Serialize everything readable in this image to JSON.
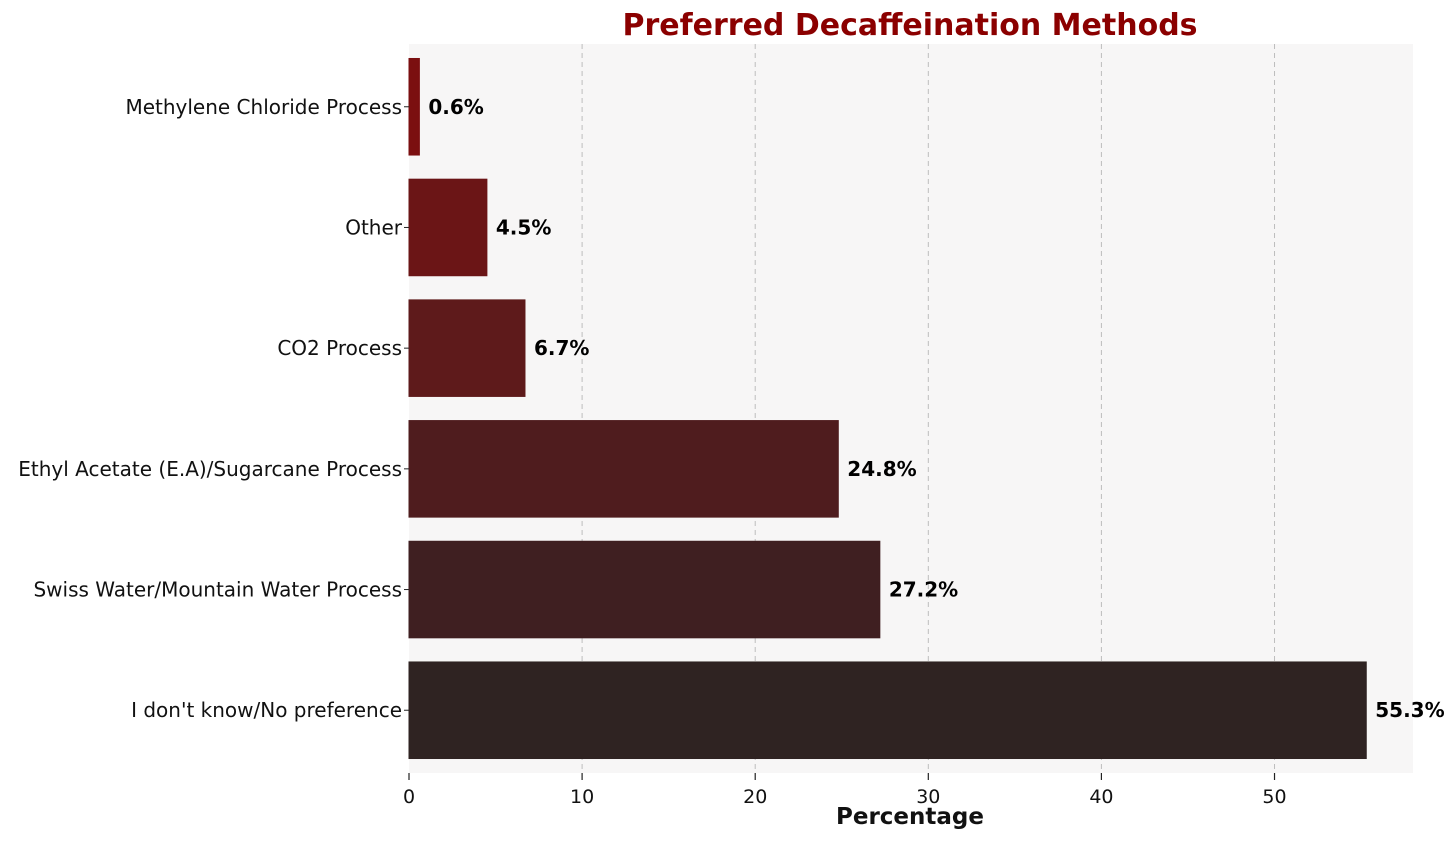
{
  "chart_data": {
    "type": "bar",
    "orientation": "horizontal",
    "title": "Preferred Decaffeination Methods",
    "xlabel": "Percentage",
    "ylabel": "",
    "xlim": [
      0,
      58
    ],
    "xticks": [
      0,
      10,
      20,
      30,
      40,
      50
    ],
    "grid": "x-dashed",
    "categories": [
      "I don't know/No preference",
      "Swiss Water/Mountain Water Process",
      "Ethyl Acetate (E.A)/Sugarcane Process",
      "CO2 Process",
      "Other",
      "Methylene Chloride Process"
    ],
    "values": [
      55.3,
      27.2,
      24.8,
      6.7,
      4.5,
      0.6
    ],
    "value_labels": [
      "55.3%",
      "27.2%",
      "24.8%",
      "6.7%",
      "4.5%",
      "0.6%"
    ],
    "bar_colors": [
      "#2f2322",
      "#3f1f21",
      "#4f1c1e",
      "#5e1a1b",
      "#6b1516",
      "#7b0f10"
    ],
    "title_color": "#8b0000",
    "plot_background": "#f7f6f6"
  }
}
